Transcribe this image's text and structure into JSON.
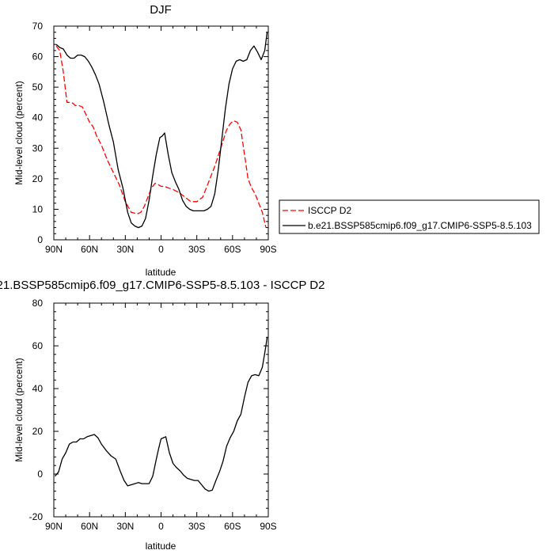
{
  "chart_data": [
    {
      "type": "line",
      "title": "DJF",
      "xlabel": "latitude",
      "ylabel": "Mid-level cloud (percent)",
      "xlim": [
        -90,
        90
      ],
      "ylim": [
        0,
        70
      ],
      "x_ticks": [
        -90,
        -60,
        -30,
        0,
        30,
        60,
        90
      ],
      "x_tick_labels": [
        "90N",
        "60N",
        "30N",
        "0",
        "30S",
        "60S",
        "90S"
      ],
      "y_ticks": [
        0,
        10,
        20,
        30,
        40,
        50,
        60,
        70
      ],
      "y_tick_labels": [
        "0",
        "10",
        "20",
        "30",
        "40",
        "50",
        "60",
        "70"
      ],
      "grid": false,
      "legend": {
        "placement": "right, outside plot",
        "labels": [
          "ISCCP D2",
          "b.e21.BSSP585cmip6.f09_g17.CMIP6-SSP5-8.5.103"
        ]
      },
      "series": [
        {
          "name": "ISCCP D2",
          "color": "#ff0000",
          "dash": "dashed",
          "x": [
            -88,
            -85,
            -82,
            -79,
            -75,
            -72,
            -69,
            -66,
            -63,
            -60,
            -57,
            -54,
            -50,
            -45,
            -40,
            -35,
            -30,
            -25,
            -20,
            -17,
            -14,
            -11,
            -8,
            -5,
            -2,
            0,
            3,
            6,
            10,
            15,
            20,
            25,
            30,
            35,
            40,
            45,
            50,
            55,
            58,
            61,
            64,
            67,
            70,
            73,
            76,
            79,
            82,
            85,
            88
          ],
          "y": [
            63.5,
            62,
            55,
            45,
            45,
            44,
            44,
            43.5,
            41,
            38.5,
            37,
            34,
            31,
            26,
            22,
            18,
            12.5,
            9,
            8.5,
            9,
            11,
            14,
            17,
            18.5,
            18,
            17.5,
            17.5,
            17,
            16.5,
            15.5,
            14,
            12.5,
            12.5,
            14,
            19,
            24,
            30,
            36,
            38,
            39,
            38.5,
            36,
            28,
            20,
            17,
            15,
            12,
            9,
            4
          ]
        },
        {
          "name": "b.e21.BSSP585cmip6.f09_g17.CMIP6-SSP5-8.5.103",
          "color": "#000000",
          "dash": "solid",
          "x": [
            -88,
            -85,
            -82,
            -79,
            -76,
            -73,
            -70,
            -67,
            -64,
            -61,
            -58,
            -55,
            -52,
            -48,
            -44,
            -40,
            -36,
            -32,
            -28,
            -25,
            -22,
            -19,
            -16,
            -13,
            -10,
            -7,
            -4,
            -1,
            1,
            3,
            6,
            9,
            12,
            15,
            18,
            21,
            24,
            27,
            30,
            33,
            36,
            39,
            42,
            45,
            48,
            51,
            54,
            57,
            60,
            63,
            66,
            69,
            72,
            75,
            78,
            81,
            84,
            87,
            89
          ],
          "y": [
            64,
            63,
            62.5,
            60.5,
            59.5,
            59.5,
            60.5,
            60.5,
            60,
            58.5,
            56.5,
            54,
            51,
            45,
            38,
            32,
            23,
            17,
            9,
            5.5,
            4.5,
            4,
            4.5,
            7,
            13,
            21,
            28,
            33.5,
            34,
            35,
            28,
            22,
            19,
            16.5,
            13,
            11,
            10,
            9.5,
            9.5,
            9.5,
            9.5,
            10,
            11,
            15,
            23,
            33,
            43,
            51,
            56,
            58.5,
            59,
            58.5,
            59,
            62,
            63.5,
            61.5,
            59,
            62,
            68
          ]
        }
      ]
    },
    {
      "type": "line",
      "title": "21.BSSP585cmip6.f09_g17.CMIP6-SSP5-8.5.103 - ISCCP D2",
      "xlabel": "latitude",
      "ylabel": "Mid-level cloud (percent)",
      "xlim": [
        -90,
        90
      ],
      "ylim": [
        -20,
        80
      ],
      "x_ticks": [
        -90,
        -60,
        -30,
        0,
        30,
        60,
        90
      ],
      "x_tick_labels": [
        "90N",
        "60N",
        "30N",
        "0",
        "30S",
        "60S",
        "90S"
      ],
      "y_ticks": [
        -20,
        0,
        20,
        40,
        60,
        80
      ],
      "y_tick_labels": [
        "-20",
        "0",
        "20",
        "40",
        "60",
        "80"
      ],
      "grid": false,
      "series": [
        {
          "color": "#000000",
          "dash": "solid",
          "x": [
            -89,
            -86,
            -83,
            -80,
            -77,
            -74,
            -71,
            -68,
            -65,
            -62,
            -59,
            -56,
            -53,
            -50,
            -46,
            -42,
            -38,
            -34,
            -31,
            -28,
            -25,
            -22,
            -19,
            -16,
            -13,
            -10,
            -7,
            -4,
            -2,
            0,
            2,
            4,
            7,
            10,
            13,
            16,
            19,
            22,
            25,
            28,
            31,
            34,
            37,
            40,
            43,
            46,
            49,
            52,
            55,
            58,
            61,
            64,
            67,
            70,
            73,
            76,
            79,
            82,
            85,
            88,
            89
          ],
          "y": [
            -1,
            1,
            7,
            10,
            14,
            15,
            15,
            16.5,
            16.5,
            17.5,
            18,
            18.5,
            17,
            14,
            11,
            8.5,
            7,
            1,
            -3,
            -5.5,
            -5,
            -4.5,
            -4,
            -4.5,
            -4.5,
            -4.5,
            -1,
            7,
            12,
            16.5,
            17,
            17.5,
            10,
            5,
            3,
            1.5,
            -0.5,
            -2,
            -2.5,
            -3,
            -3,
            -5,
            -7,
            -8,
            -7.5,
            -3,
            1,
            6,
            13,
            17,
            20,
            25,
            28,
            36,
            43,
            46,
            46.5,
            46,
            50,
            60,
            64
          ]
        }
      ]
    }
  ]
}
